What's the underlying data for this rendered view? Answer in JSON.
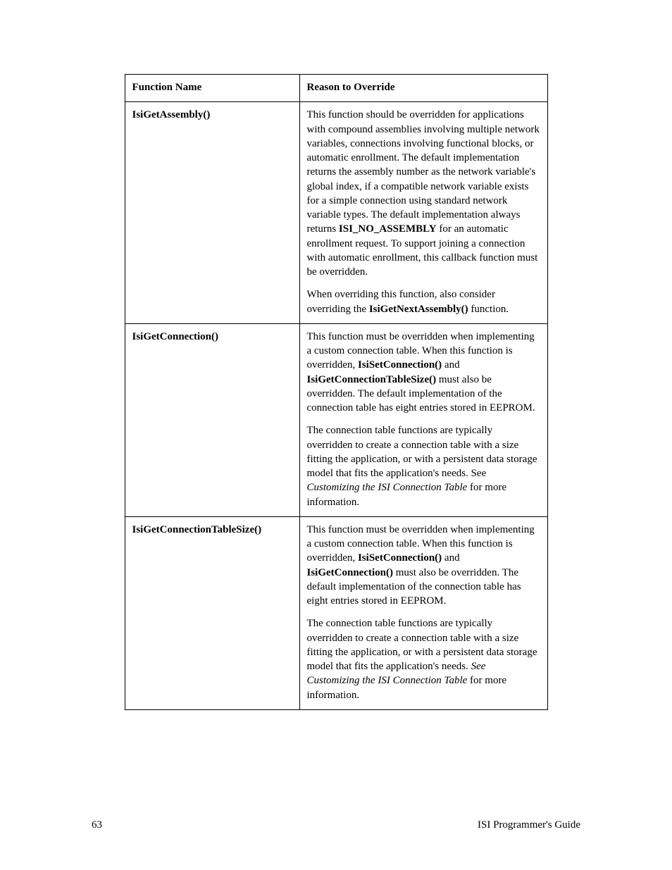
{
  "table": {
    "header": {
      "col1": "Function Name",
      "col2": "Reason to Override"
    },
    "rows": [
      {
        "fn": "IsiGetAssembly()",
        "p1_a": "This function should be overridden for applications with compound assemblies involving multiple network variables, connections involving functional blocks, or automatic enrollment.  The default implementation returns the assembly number as the network variable's global index, if a compatible network variable exists for a simple connection using standard network variable types.  The default implementation always returns ",
        "p1_bold": "ISI_NO_ASSEMBLY",
        "p1_b": " for an automatic enrollment request.  To support joining a connection with automatic enrollment, this callback function must be overridden.",
        "p2_a": "When overriding this function, also consider overriding the ",
        "p2_bold": "IsiGetNextAssembly()",
        "p2_b": " function."
      },
      {
        "fn": "IsiGetConnection()",
        "p1_a": "This function must be overridden when implementing a custom connection table.  When this function is overridden, ",
        "p1_bold1": "IsiSetConnection()",
        "p1_mid": " and ",
        "p1_bold2": "IsiGetConnectionTableSize()",
        "p1_b": " must also be overridden.  The default implementation of the connection table has eight entries stored in EEPROM.",
        "p2_a": "The connection table functions are typically overridden to create a connection table with a size fitting the application, or with a persistent data storage model that fits the application's needs.  See ",
        "p2_ital": "Customizing the ISI Connection Table",
        "p2_b": " for more information."
      },
      {
        "fn": "IsiGetConnectionTableSize()",
        "p1_a": "This function must be overridden when implementing a custom connection table.  When this function is overridden, ",
        "p1_bold1": "IsiSetConnection()",
        "p1_mid": " and ",
        "p1_bold2": "IsiGetConnection()",
        "p1_b": " must also be overridden.  The default implementation of the connection table has eight entries stored in EEPROM.",
        "p2_a": "The connection table functions are typically overridden to create a connection table with a size fitting the application, or with a persistent data storage model that fits the application's needs.  ",
        "p2_see": "See ",
        "p2_ital": "Customizing the ISI Connection Table",
        "p2_b": " for more information."
      }
    ]
  },
  "footer": {
    "page_number": "63",
    "doc_title": "ISI Programmer's Guide"
  }
}
